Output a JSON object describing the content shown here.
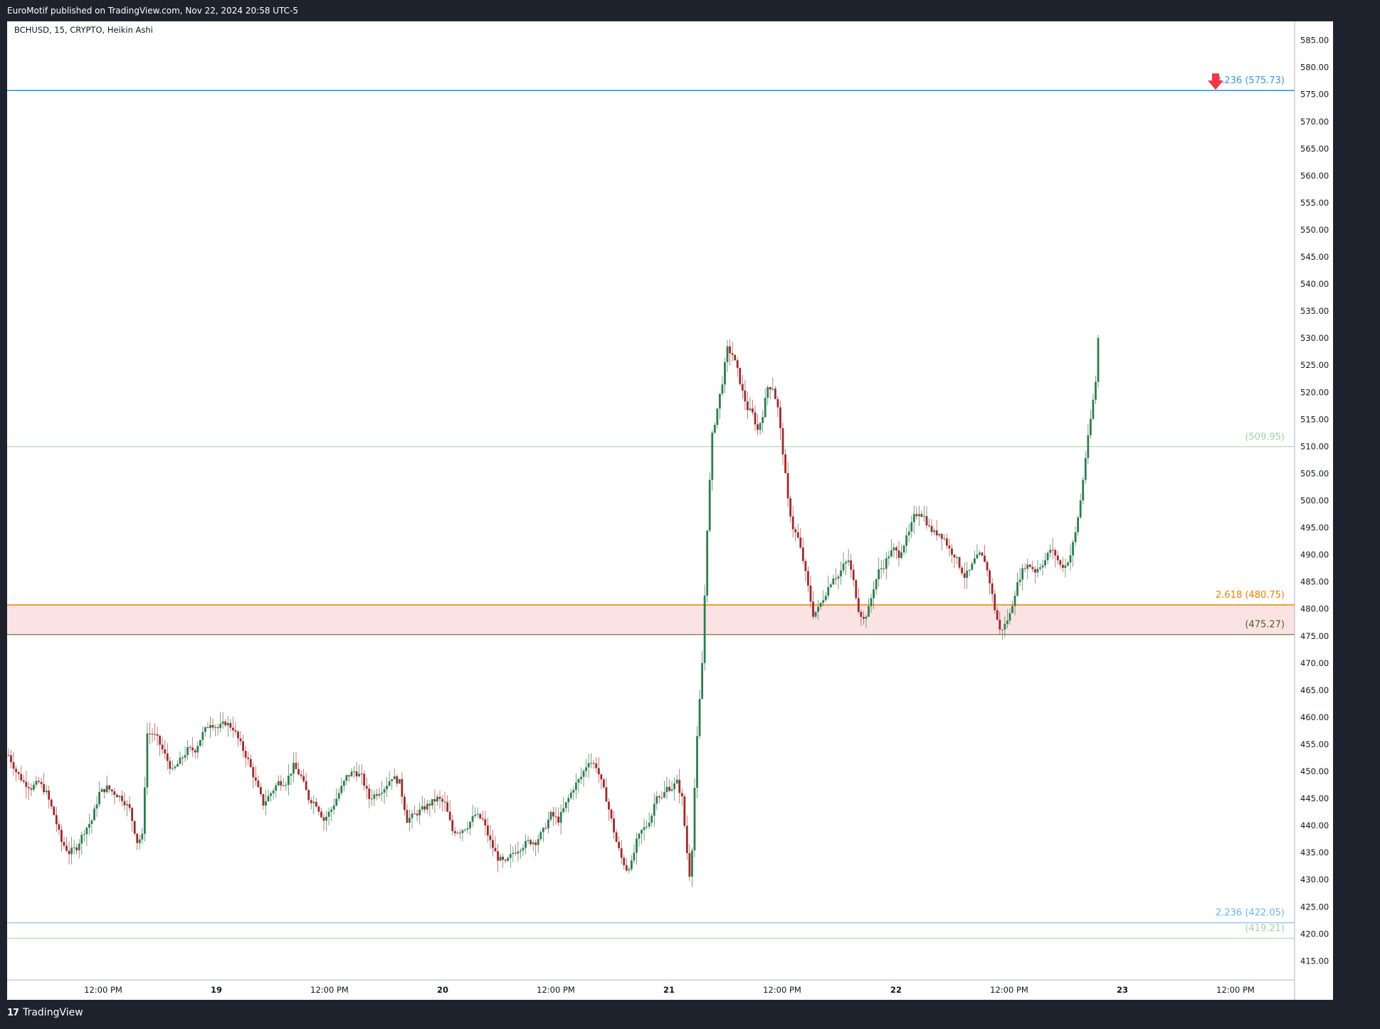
{
  "header": {
    "published_text": "EuroMotif published on TradingView.com, Nov 22, 2024 20:58 UTC-5"
  },
  "footer": {
    "brand": "TradingView"
  },
  "chart_data": {
    "type": "candlestick",
    "title": "BCHUSD, 15, CRYPTO, Heikin Ashi",
    "y_axis": {
      "ylim": [
        411.5,
        588.5
      ],
      "ticks": [
        415,
        420,
        425,
        430,
        435,
        440,
        445,
        450,
        455,
        460,
        465,
        470,
        475,
        480,
        485,
        490,
        495,
        500,
        505,
        510,
        515,
        520,
        525,
        530,
        535,
        540,
        545,
        550,
        555,
        560,
        565,
        570,
        575,
        580,
        585
      ]
    },
    "x_axis": {
      "tick_labels": [
        "12:00 PM",
        "19",
        "12:00 PM",
        "20",
        "12:00 PM",
        "21",
        "12:00 PM",
        "22",
        "12:00 PM",
        "23",
        "12:00 PM"
      ]
    },
    "levels": [
      {
        "label": "3.236 (575.73)",
        "price": 575.73,
        "color": "#2e9ae6"
      },
      {
        "label": "(509.95)",
        "price": 509.95,
        "color": "#9fd49f"
      },
      {
        "label": "2.618 (480.75)",
        "price": 480.75,
        "color": "#f57c00"
      },
      {
        "label": "(475.27)",
        "price": 475.27,
        "color": "#4a5e23"
      },
      {
        "label": "2.236 (422.05)",
        "price": 422.05,
        "color": "#64b5f6"
      },
      {
        "label": "(419.21)",
        "price": 419.21,
        "color": "#9fd49f"
      }
    ],
    "zone": {
      "from": 475.27,
      "to": 480.75,
      "color": "#fbe3e4"
    },
    "arrow_marker": {
      "price": 575.73,
      "color": "#f23645"
    },
    "up_color": "#2e7d4f",
    "down_color": "#9e2a2a",
    "path": [
      [
        0,
        453
      ],
      [
        3,
        450
      ],
      [
        6,
        448
      ],
      [
        9,
        447
      ],
      [
        12,
        448
      ],
      [
        15,
        446
      ],
      [
        18,
        442
      ],
      [
        21,
        437
      ],
      [
        24,
        435
      ],
      [
        27,
        436
      ],
      [
        30,
        439
      ],
      [
        33,
        441
      ],
      [
        36,
        446
      ],
      [
        39,
        447
      ],
      [
        42,
        446
      ],
      [
        45,
        445
      ],
      [
        48,
        443
      ],
      [
        51,
        437
      ],
      [
        53,
        438
      ],
      [
        55,
        457
      ],
      [
        57,
        457
      ],
      [
        59,
        456
      ],
      [
        62,
        453
      ],
      [
        65,
        450
      ],
      [
        68,
        452
      ],
      [
        71,
        454
      ],
      [
        74,
        454
      ],
      [
        77,
        457
      ],
      [
        80,
        459
      ],
      [
        83,
        458
      ],
      [
        86,
        459
      ],
      [
        89,
        458
      ],
      [
        92,
        455
      ],
      [
        95,
        452
      ],
      [
        98,
        448
      ],
      [
        101,
        444
      ],
      [
        104,
        446
      ],
      [
        107,
        448
      ],
      [
        110,
        448
      ],
      [
        113,
        451
      ],
      [
        116,
        449
      ],
      [
        119,
        445
      ],
      [
        122,
        444
      ],
      [
        125,
        441
      ],
      [
        128,
        443
      ],
      [
        131,
        446
      ],
      [
        134,
        449
      ],
      [
        137,
        450
      ],
      [
        140,
        449
      ],
      [
        143,
        445
      ],
      [
        146,
        446
      ],
      [
        149,
        447
      ],
      [
        152,
        449
      ],
      [
        155,
        448
      ],
      [
        158,
        441
      ],
      [
        161,
        442
      ],
      [
        164,
        443
      ],
      [
        167,
        444
      ],
      [
        170,
        445
      ],
      [
        173,
        444
      ],
      [
        176,
        439
      ],
      [
        179,
        439
      ],
      [
        182,
        440
      ],
      [
        185,
        442
      ],
      [
        188,
        441
      ],
      [
        191,
        437
      ],
      [
        194,
        434
      ],
      [
        197,
        433
      ],
      [
        200,
        435
      ],
      [
        203,
        436
      ],
      [
        206,
        437
      ],
      [
        209,
        437
      ],
      [
        212,
        439
      ],
      [
        215,
        442
      ],
      [
        218,
        441
      ],
      [
        221,
        444
      ],
      [
        224,
        447
      ],
      [
        227,
        449
      ],
      [
        230,
        452
      ],
      [
        233,
        451
      ],
      [
        235,
        448
      ],
      [
        237,
        445
      ],
      [
        239,
        441
      ],
      [
        241,
        437
      ],
      [
        243,
        434
      ],
      [
        245,
        432
      ],
      [
        247,
        433
      ],
      [
        249,
        437
      ],
      [
        251,
        439
      ],
      [
        253,
        440
      ],
      [
        255,
        442
      ],
      [
        257,
        446
      ],
      [
        259,
        445
      ],
      [
        261,
        447
      ],
      [
        263,
        447
      ],
      [
        265,
        448
      ],
      [
        267,
        445
      ],
      [
        268,
        440
      ],
      [
        269,
        435
      ],
      [
        270,
        431
      ],
      [
        271,
        436
      ],
      [
        272,
        447
      ],
      [
        273,
        456
      ],
      [
        275,
        470
      ],
      [
        277,
        495
      ],
      [
        279,
        512
      ],
      [
        281,
        517
      ],
      [
        283,
        522
      ],
      [
        285,
        528
      ],
      [
        287,
        527
      ],
      [
        289,
        524
      ],
      [
        291,
        520
      ],
      [
        293,
        517
      ],
      [
        295,
        516
      ],
      [
        297,
        513
      ],
      [
        299,
        516
      ],
      [
        301,
        521
      ],
      [
        303,
        521
      ],
      [
        305,
        517
      ],
      [
        307,
        509
      ],
      [
        309,
        500
      ],
      [
        311,
        495
      ],
      [
        313,
        493
      ],
      [
        315,
        489
      ],
      [
        317,
        484
      ],
      [
        319,
        479
      ],
      [
        321,
        480
      ],
      [
        323,
        482
      ],
      [
        325,
        484
      ],
      [
        327,
        486
      ],
      [
        329,
        486
      ],
      [
        331,
        488
      ],
      [
        333,
        489
      ],
      [
        335,
        485
      ],
      [
        337,
        480
      ],
      [
        339,
        478
      ],
      [
        341,
        480
      ],
      [
        343,
        484
      ],
      [
        345,
        487
      ],
      [
        347,
        488
      ],
      [
        349,
        490
      ],
      [
        351,
        491
      ],
      [
        353,
        490
      ],
      [
        355,
        492
      ],
      [
        357,
        494
      ],
      [
        359,
        497
      ],
      [
        361,
        498
      ],
      [
        363,
        497
      ],
      [
        365,
        495
      ],
      [
        367,
        494
      ],
      [
        369,
        494
      ],
      [
        371,
        493
      ],
      [
        373,
        491
      ],
      [
        375,
        490
      ],
      [
        377,
        488
      ],
      [
        379,
        486
      ],
      [
        381,
        487
      ],
      [
        383,
        489
      ],
      [
        385,
        490
      ],
      [
        387,
        489
      ],
      [
        389,
        485
      ],
      [
        391,
        480
      ],
      [
        393,
        476
      ],
      [
        395,
        477
      ],
      [
        397,
        479
      ],
      [
        399,
        483
      ],
      [
        401,
        486
      ],
      [
        403,
        488
      ],
      [
        405,
        488
      ],
      [
        407,
        487
      ],
      [
        409,
        488
      ],
      [
        411,
        489
      ],
      [
        413,
        491
      ],
      [
        415,
        490
      ],
      [
        417,
        488
      ],
      [
        419,
        488
      ],
      [
        421,
        490
      ],
      [
        423,
        494
      ],
      [
        425,
        500
      ],
      [
        427,
        508
      ],
      [
        429,
        515
      ],
      [
        431,
        522
      ],
      [
        432,
        530
      ]
    ]
  }
}
